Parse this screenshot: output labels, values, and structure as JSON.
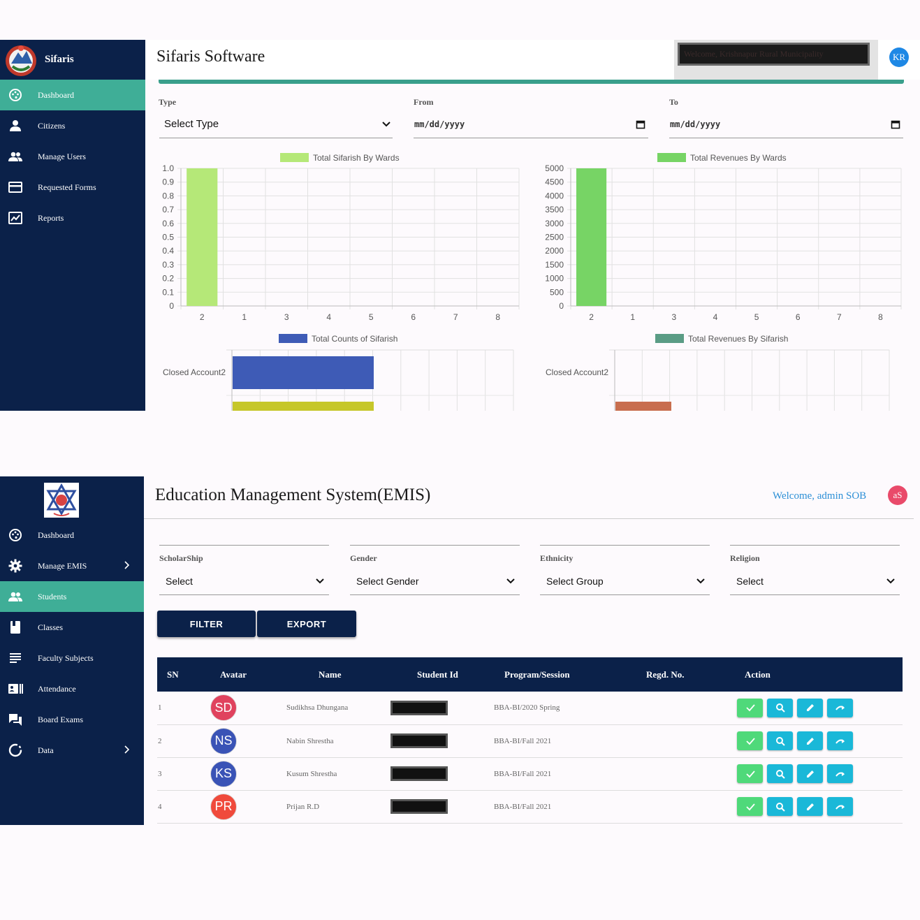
{
  "sifaris": {
    "brand": "Sifaris",
    "title": "Sifaris Software",
    "user_initials": "KR",
    "welcome_redacted": "Welcome, Krishnapur Rural Municipality",
    "sidebar": [
      {
        "label": "Dashboard",
        "icon": "palette-icon",
        "active": true
      },
      {
        "label": "Citizens",
        "icon": "person-icon",
        "active": false
      },
      {
        "label": "Manage Users",
        "icon": "people-icon",
        "active": false
      },
      {
        "label": "Requested Forms",
        "icon": "card-icon",
        "active": false
      },
      {
        "label": "Reports",
        "icon": "picture-icon",
        "active": false
      }
    ],
    "filters": {
      "type_label": "Type",
      "type_value": "Select Type",
      "from_label": "From",
      "from_placeholder": "mm/dd/yyyy",
      "to_label": "To",
      "to_placeholder": "mm/dd/yyyy"
    },
    "colors": {
      "sidebar": "#0b2149",
      "active": "#3fae97"
    }
  },
  "chart_data": [
    {
      "type": "bar",
      "legend": "Total Sifarish By Wards",
      "color": "#b5e878",
      "categories": [
        "2",
        "1",
        "3",
        "4",
        "5",
        "6",
        "7",
        "8"
      ],
      "values": [
        1,
        0,
        0,
        0,
        0,
        0,
        0,
        0
      ],
      "yticks": [
        "1.0",
        "0.9",
        "0.8",
        "0.7",
        "0.6",
        "0.5",
        "0.4",
        "0.3",
        "0.2",
        "0.1",
        "0"
      ],
      "ylim": [
        0,
        1
      ]
    },
    {
      "type": "bar",
      "legend": "Total Revenues By Wards",
      "color": "#77d465",
      "categories": [
        "2",
        "1",
        "3",
        "4",
        "5",
        "6",
        "7",
        "8"
      ],
      "values": [
        5000,
        0,
        0,
        0,
        0,
        0,
        0,
        0
      ],
      "yticks": [
        "5000",
        "4500",
        "4000",
        "3500",
        "3000",
        "2500",
        "2000",
        "1500",
        "1000",
        "500",
        "0"
      ],
      "ylim": [
        0,
        5000
      ]
    },
    {
      "type": "bar",
      "orientation": "horizontal",
      "legend": "Total Counts of  Sifarish",
      "color": "#3e5bb6",
      "categories": [
        "Closed Account2"
      ],
      "values": [
        1
      ],
      "second_bar_color": "#c6c72a"
    },
    {
      "type": "bar",
      "orientation": "horizontal",
      "legend": "Total Revenues By Sifarish",
      "color": "#5a9c85",
      "categories": [
        "Closed Account2"
      ],
      "values": [
        0
      ],
      "second_bar_color": "#c86e4e"
    }
  ],
  "emis": {
    "title": "Education Management System(EMIS)",
    "welcome": "Welcome, admin SOB",
    "user_initials": "aS",
    "sidebar": [
      {
        "label": "Dashboard",
        "icon": "palette-icon",
        "active": false,
        "chevron": false
      },
      {
        "label": "Manage EMIS",
        "icon": "gear-icon",
        "active": false,
        "chevron": true
      },
      {
        "label": "Students",
        "icon": "people-icon",
        "active": true,
        "chevron": false
      },
      {
        "label": "Classes",
        "icon": "book-icon",
        "active": false,
        "chevron": false
      },
      {
        "label": "Faculty Subjects",
        "icon": "subject-icon",
        "active": false,
        "chevron": false
      },
      {
        "label": "Attendance",
        "icon": "badge-icon",
        "active": false,
        "chevron": false
      },
      {
        "label": "Board Exams",
        "icon": "forum-icon",
        "active": false,
        "chevron": false
      },
      {
        "label": "Data",
        "icon": "refresh-icon",
        "active": false,
        "chevron": true
      }
    ],
    "filters": [
      {
        "label": "ScholarShip",
        "value": "Select"
      },
      {
        "label": "Gender",
        "value": "Select Gender"
      },
      {
        "label": "Ethnicity",
        "value": "Select Group"
      },
      {
        "label": "Religion",
        "value": "Select"
      }
    ],
    "buttons": {
      "filter": "FILTER",
      "export": "EXPORT"
    },
    "table": {
      "headers": [
        "SN",
        "Avatar",
        "Name",
        "Student Id",
        "Program/Session",
        "Regd. No.",
        "Action"
      ],
      "rows": [
        {
          "sn": "1",
          "initials": "SD",
          "color": "#e0425e",
          "name": "Sudikhsa Dhungana",
          "program": "BBA-BI/2020 Spring",
          "regd": ""
        },
        {
          "sn": "2",
          "initials": "NS",
          "color": "#3a53b6",
          "name": "Nabin Shrestha",
          "program": "BBA-BI/Fall 2021",
          "regd": ""
        },
        {
          "sn": "3",
          "initials": "KS",
          "color": "#3a53b6",
          "name": "Kusum Shrestha",
          "program": "BBA-BI/Fall 2021",
          "regd": ""
        },
        {
          "sn": "4",
          "initials": "PR",
          "color": "#f04a3c",
          "name": "Prijan R.D",
          "program": "BBA-BI/Fall 2021",
          "regd": ""
        }
      ],
      "actions": [
        "check-icon",
        "search-icon",
        "edit-icon",
        "redo-icon"
      ]
    }
  }
}
